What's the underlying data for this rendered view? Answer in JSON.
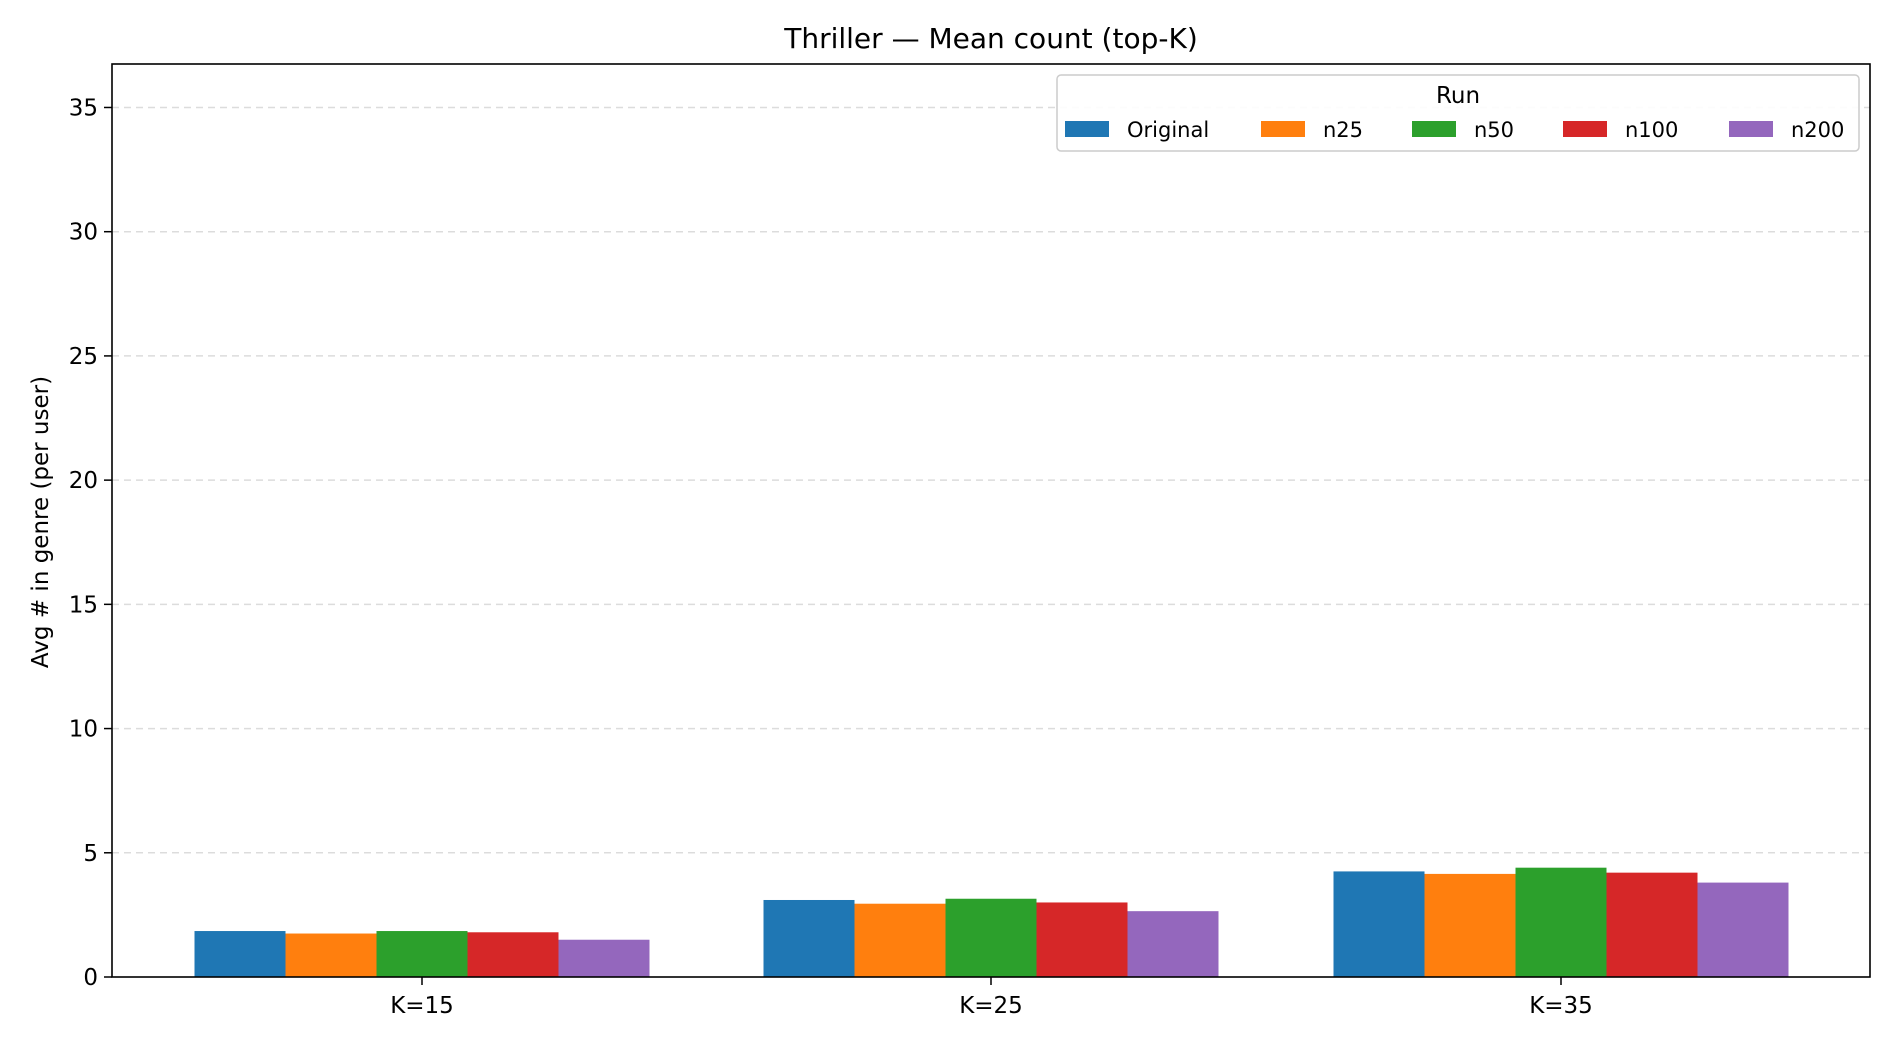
{
  "chart_data": {
    "type": "bar",
    "title": "Thriller — Mean count (top-K)",
    "xlabel": "",
    "ylabel": "Avg # in genre (per user)",
    "categories": [
      "K=15",
      "K=25",
      "K=35"
    ],
    "ylim": [
      0,
      36.75
    ],
    "yticks": [
      0,
      5,
      10,
      15,
      20,
      25,
      30,
      35
    ],
    "grid": "y-dashed",
    "legend": {
      "title": "Run",
      "placement": "top-right",
      "columns": 5
    },
    "series": [
      {
        "name": "Original",
        "color": "#1f77b4",
        "values": [
          1.85,
          3.1,
          4.25
        ]
      },
      {
        "name": "n25",
        "color": "#ff7f0e",
        "values": [
          1.75,
          2.95,
          4.15
        ]
      },
      {
        "name": "n50",
        "color": "#2ca02c",
        "values": [
          1.85,
          3.15,
          4.4
        ]
      },
      {
        "name": "n100",
        "color": "#d62728",
        "values": [
          1.8,
          3.0,
          4.2
        ]
      },
      {
        "name": "n200",
        "color": "#9467bd",
        "values": [
          1.5,
          2.65,
          3.8
        ]
      }
    ]
  }
}
